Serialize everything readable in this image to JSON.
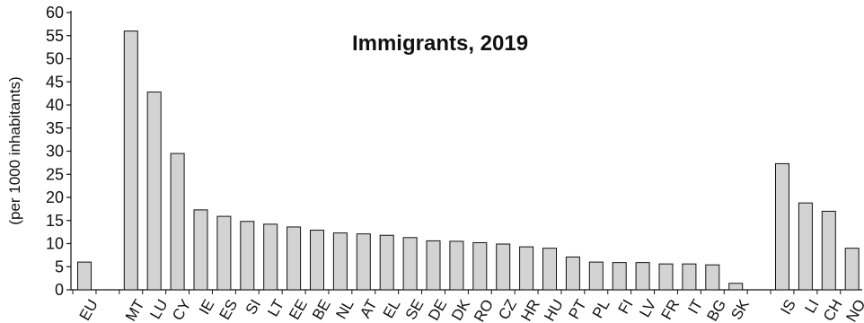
{
  "chart_data": {
    "type": "bar",
    "title": "Immigrants, 2019",
    "ylabel": "(per 1000 inhabitants)",
    "xlabel": "",
    "ylim": [
      0,
      60
    ],
    "yticks": [
      0,
      5,
      10,
      15,
      20,
      25,
      30,
      35,
      40,
      45,
      50,
      55,
      60
    ],
    "grid": false,
    "bar_color": "#d3d3d3",
    "categories": [
      "EU",
      "",
      "MT",
      "LU",
      "CY",
      "IE",
      "ES",
      "SI",
      "LT",
      "EE",
      "BE",
      "NL",
      "AT",
      "EL",
      "SE",
      "DE",
      "DK",
      "RO",
      "CZ",
      "HR",
      "HU",
      "PT",
      "PL",
      "FI",
      "LV",
      "FR",
      "IT",
      "BG",
      "SK",
      "",
      "IS",
      "LI",
      "CH",
      "NO"
    ],
    "values": [
      6.0,
      null,
      56.0,
      42.8,
      29.5,
      17.3,
      15.9,
      14.8,
      14.2,
      13.6,
      12.9,
      12.3,
      12.1,
      11.8,
      11.3,
      10.6,
      10.5,
      10.2,
      9.9,
      9.3,
      9.0,
      7.1,
      6.0,
      5.9,
      5.9,
      5.6,
      5.6,
      5.4,
      1.4,
      null,
      27.3,
      18.8,
      17.0,
      9.0
    ]
  }
}
